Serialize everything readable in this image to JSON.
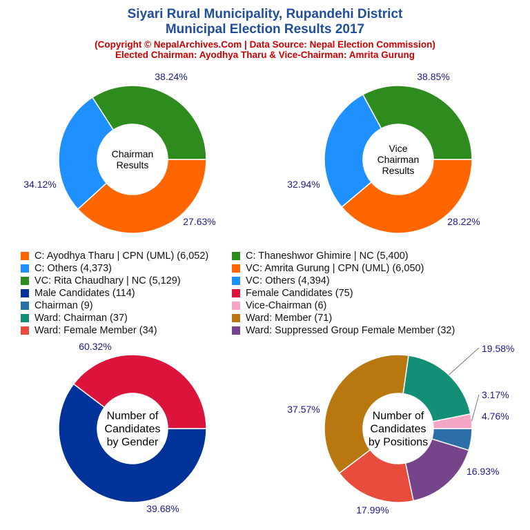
{
  "header": {
    "title_line1": "Siyari Rural Municipality, Rupandehi District",
    "title_line2": "Municipal Election Results 2017",
    "subtitle_line1": "(Copyright © NepalArchives.Com | Data Source: Nepal Election Commission)",
    "subtitle_line2": "Elected Chairman: Ayodhya Tharu & Vice-Chairman: Amrita Gurung"
  },
  "legend": [
    {
      "label": "C: Ayodhya Tharu | CPN (UML) (6,052)",
      "color": "#ff6600"
    },
    {
      "label": "C: Thaneshwor Ghimire | NC (5,400)",
      "color": "#2e8b1e"
    },
    {
      "label": "C: Others (4,373)",
      "color": "#1e90ff"
    },
    {
      "label": "VC: Amrita Gurung | CPN (UML) (6,050)",
      "color": "#ff6600"
    },
    {
      "label": "VC: Rita Chaudhary | NC (5,129)",
      "color": "#2e8b1e"
    },
    {
      "label": "VC: Others (4,394)",
      "color": "#1e90ff"
    },
    {
      "label": "Male Candidates (114)",
      "color": "#003399"
    },
    {
      "label": "Female Candidates (75)",
      "color": "#dc143c"
    },
    {
      "label": "Chairman (9)",
      "color": "#2c6fa8"
    },
    {
      "label": "Vice-Chairman (6)",
      "color": "#f4a6c4"
    },
    {
      "label": "Ward: Chairman (37)",
      "color": "#148f77"
    },
    {
      "label": "Ward: Member (71)",
      "color": "#b8780f"
    },
    {
      "label": "Ward: Female Member (34)",
      "color": "#e74c3c"
    },
    {
      "label": "Ward: Suppressed Group Female Member (32)",
      "color": "#76448a"
    }
  ],
  "chart_data": [
    {
      "type": "pie",
      "title": "Chairman Results",
      "center_lines": [
        "Chairman",
        "Results"
      ],
      "slices": [
        {
          "name": "C: Ayodhya Tharu | CPN (UML)",
          "value": 6052,
          "label": "38.24%",
          "color": "#ff6600"
        },
        {
          "name": "C: Others",
          "value": 4373,
          "label": "27.63%",
          "color": "#1e90ff"
        },
        {
          "name": "C: Thaneshwor Ghimire | NC",
          "value": 5400,
          "label": "34.12%",
          "color": "#2e8b1e"
        }
      ]
    },
    {
      "type": "pie",
      "title": "Vice Chairman Results",
      "center_lines": [
        "Vice",
        "Chairman",
        "Results"
      ],
      "slices": [
        {
          "name": "VC: Amrita Gurung | CPN (UML)",
          "value": 6050,
          "label": "38.85%",
          "color": "#ff6600"
        },
        {
          "name": "VC: Others",
          "value": 4394,
          "label": "28.22%",
          "color": "#1e90ff"
        },
        {
          "name": "VC: Rita Chaudhary | NC",
          "value": 5129,
          "label": "32.94%",
          "color": "#2e8b1e"
        }
      ]
    },
    {
      "type": "pie",
      "title": "Number of Candidates by Gender",
      "center_lines": [
        "Number of",
        "Candidates",
        "by Gender"
      ],
      "slices": [
        {
          "name": "Male Candidates",
          "value": 114,
          "label": "60.32%",
          "color": "#003399"
        },
        {
          "name": "Female Candidates",
          "value": 75,
          "label": "39.68%",
          "color": "#dc143c"
        }
      ]
    },
    {
      "type": "pie",
      "title": "Number of Candidates by Positions",
      "center_lines": [
        "Number of",
        "Candidates",
        "by Positions"
      ],
      "slices": [
        {
          "name": "Chairman",
          "value": 9,
          "label": "4.76%",
          "color": "#2c6fa8"
        },
        {
          "name": "Ward: Suppressed Group Female Member",
          "value": 32,
          "label": "16.93%",
          "color": "#76448a"
        },
        {
          "name": "Ward: Female Member",
          "value": 34,
          "label": "17.99%",
          "color": "#e74c3c"
        },
        {
          "name": "Ward: Member",
          "value": 71,
          "label": "37.57%",
          "color": "#b8780f"
        },
        {
          "name": "Ward: Chairman",
          "value": 37,
          "label": "19.58%",
          "color": "#148f77"
        },
        {
          "name": "Vice-Chairman",
          "value": 6,
          "label": "3.17%",
          "color": "#f4a6c4"
        }
      ]
    }
  ]
}
